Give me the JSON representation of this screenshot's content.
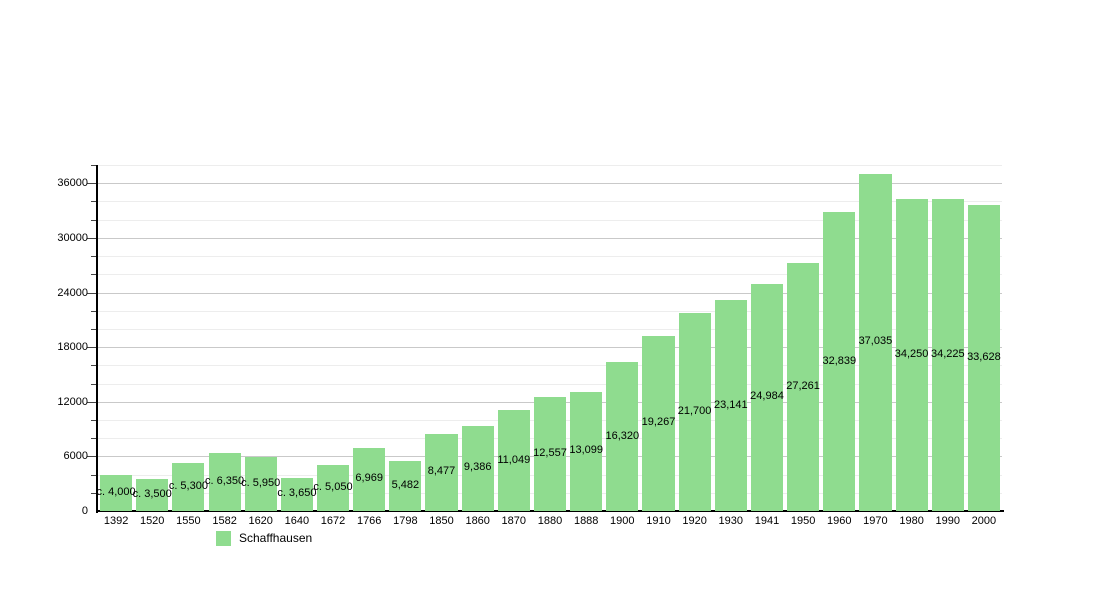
{
  "chart_data": {
    "type": "bar",
    "title": "",
    "series_name": "Schaffhausen",
    "categories": [
      "1392",
      "1520",
      "1550",
      "1582",
      "1620",
      "1640",
      "1672",
      "1766",
      "1798",
      "1850",
      "1860",
      "1870",
      "1880",
      "1888",
      "1900",
      "1910",
      "1920",
      "1930",
      "1941",
      "1950",
      "1960",
      "1970",
      "1980",
      "1990",
      "2000"
    ],
    "values": [
      4000,
      3500,
      5300,
      6350,
      5950,
      3650,
      5050,
      6969,
      5482,
      8477,
      9386,
      11049,
      12557,
      13099,
      16320,
      19267,
      21700,
      23141,
      24984,
      27261,
      32839,
      37035,
      34250,
      34225,
      33628
    ],
    "bar_labels": [
      "c. 4,000",
      "c. 3,500",
      "c. 5,300",
      "c. 6,350",
      "c. 5,950",
      "c. 3,650",
      "c. 5,050",
      "6,969",
      "5,482",
      "8,477",
      "9,386",
      "11,049",
      "12,557",
      "13,099",
      "16,320",
      "19,267",
      "21,700",
      "23,141",
      "24,984",
      "27,261",
      "32,839",
      "37,035",
      "34,250",
      "34,225",
      "33,628"
    ],
    "xlabel": "",
    "ylabel": "",
    "ylim": [
      0,
      38000
    ],
    "yticks_major": [
      0,
      6000,
      12000,
      18000,
      24000,
      30000,
      36000
    ],
    "ytick_minor_step": 2000,
    "grid": true,
    "legend": [
      {
        "label": "Schaffhausen",
        "color": "#8fdc8f"
      }
    ],
    "legend_position": "bottom-left",
    "colors": {
      "bar": "#8fdc8f",
      "grid_major": "#c9c9c9",
      "grid_minor": "#ededed",
      "axis": "#000000",
      "text": "#000000"
    }
  }
}
